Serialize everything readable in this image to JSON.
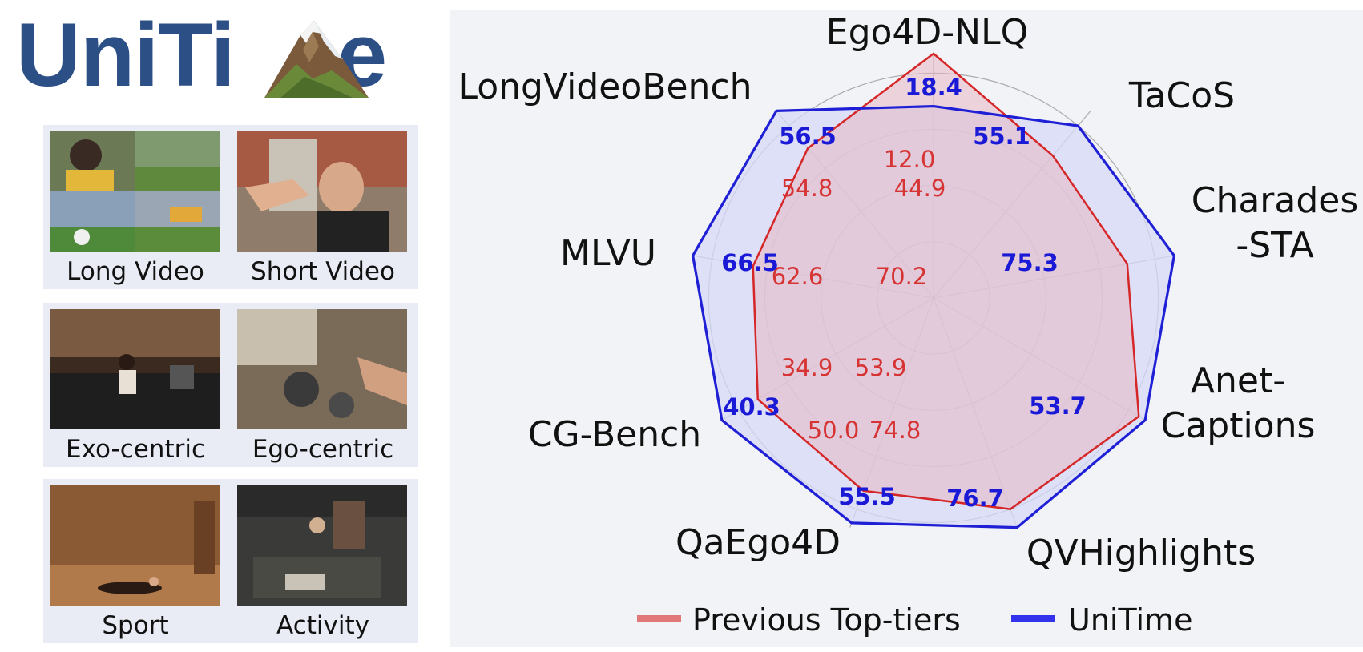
{
  "logo": {
    "text_before": "UniTi",
    "text_after": "e"
  },
  "panels": [
    {
      "left_caption": "Long Video",
      "right_caption": "Short Video"
    },
    {
      "left_caption": "Exo-centric",
      "right_caption": "Ego-centric"
    },
    {
      "left_caption": "Sport",
      "right_caption": "Activity"
    }
  ],
  "chart_data": {
    "type": "radar",
    "axes": [
      "Ego4D-NLQ",
      "TaCoS",
      "Charades\n-STA",
      "Anet-\nCaptions",
      "QVHighlights",
      "QaEgo4D",
      "CG-Bench",
      "MLVU",
      "LongVideoBench"
    ],
    "series": [
      {
        "name": "Previous Top-tiers",
        "color": "#d62728",
        "values": [
          12.0,
          44.9,
          70.2,
          53.9,
          74.8,
          50.0,
          34.9,
          62.6,
          54.8
        ]
      },
      {
        "name": "UniTime",
        "color": "#1f1fd6",
        "values": [
          18.4,
          55.1,
          75.3,
          53.7,
          76.7,
          55.5,
          40.3,
          66.5,
          56.5
        ]
      }
    ],
    "normalized_levels": [
      1.0,
      0.76,
      0.805,
      0.97,
      0.92,
      0.84,
      0.83,
      0.75,
      0.8,
      0.785,
      0.92,
      1.0,
      1.0,
      1.0,
      0.98,
      1.0,
      1.0,
      1.0
    ],
    "grid": true,
    "legend_position": "bottom"
  }
}
